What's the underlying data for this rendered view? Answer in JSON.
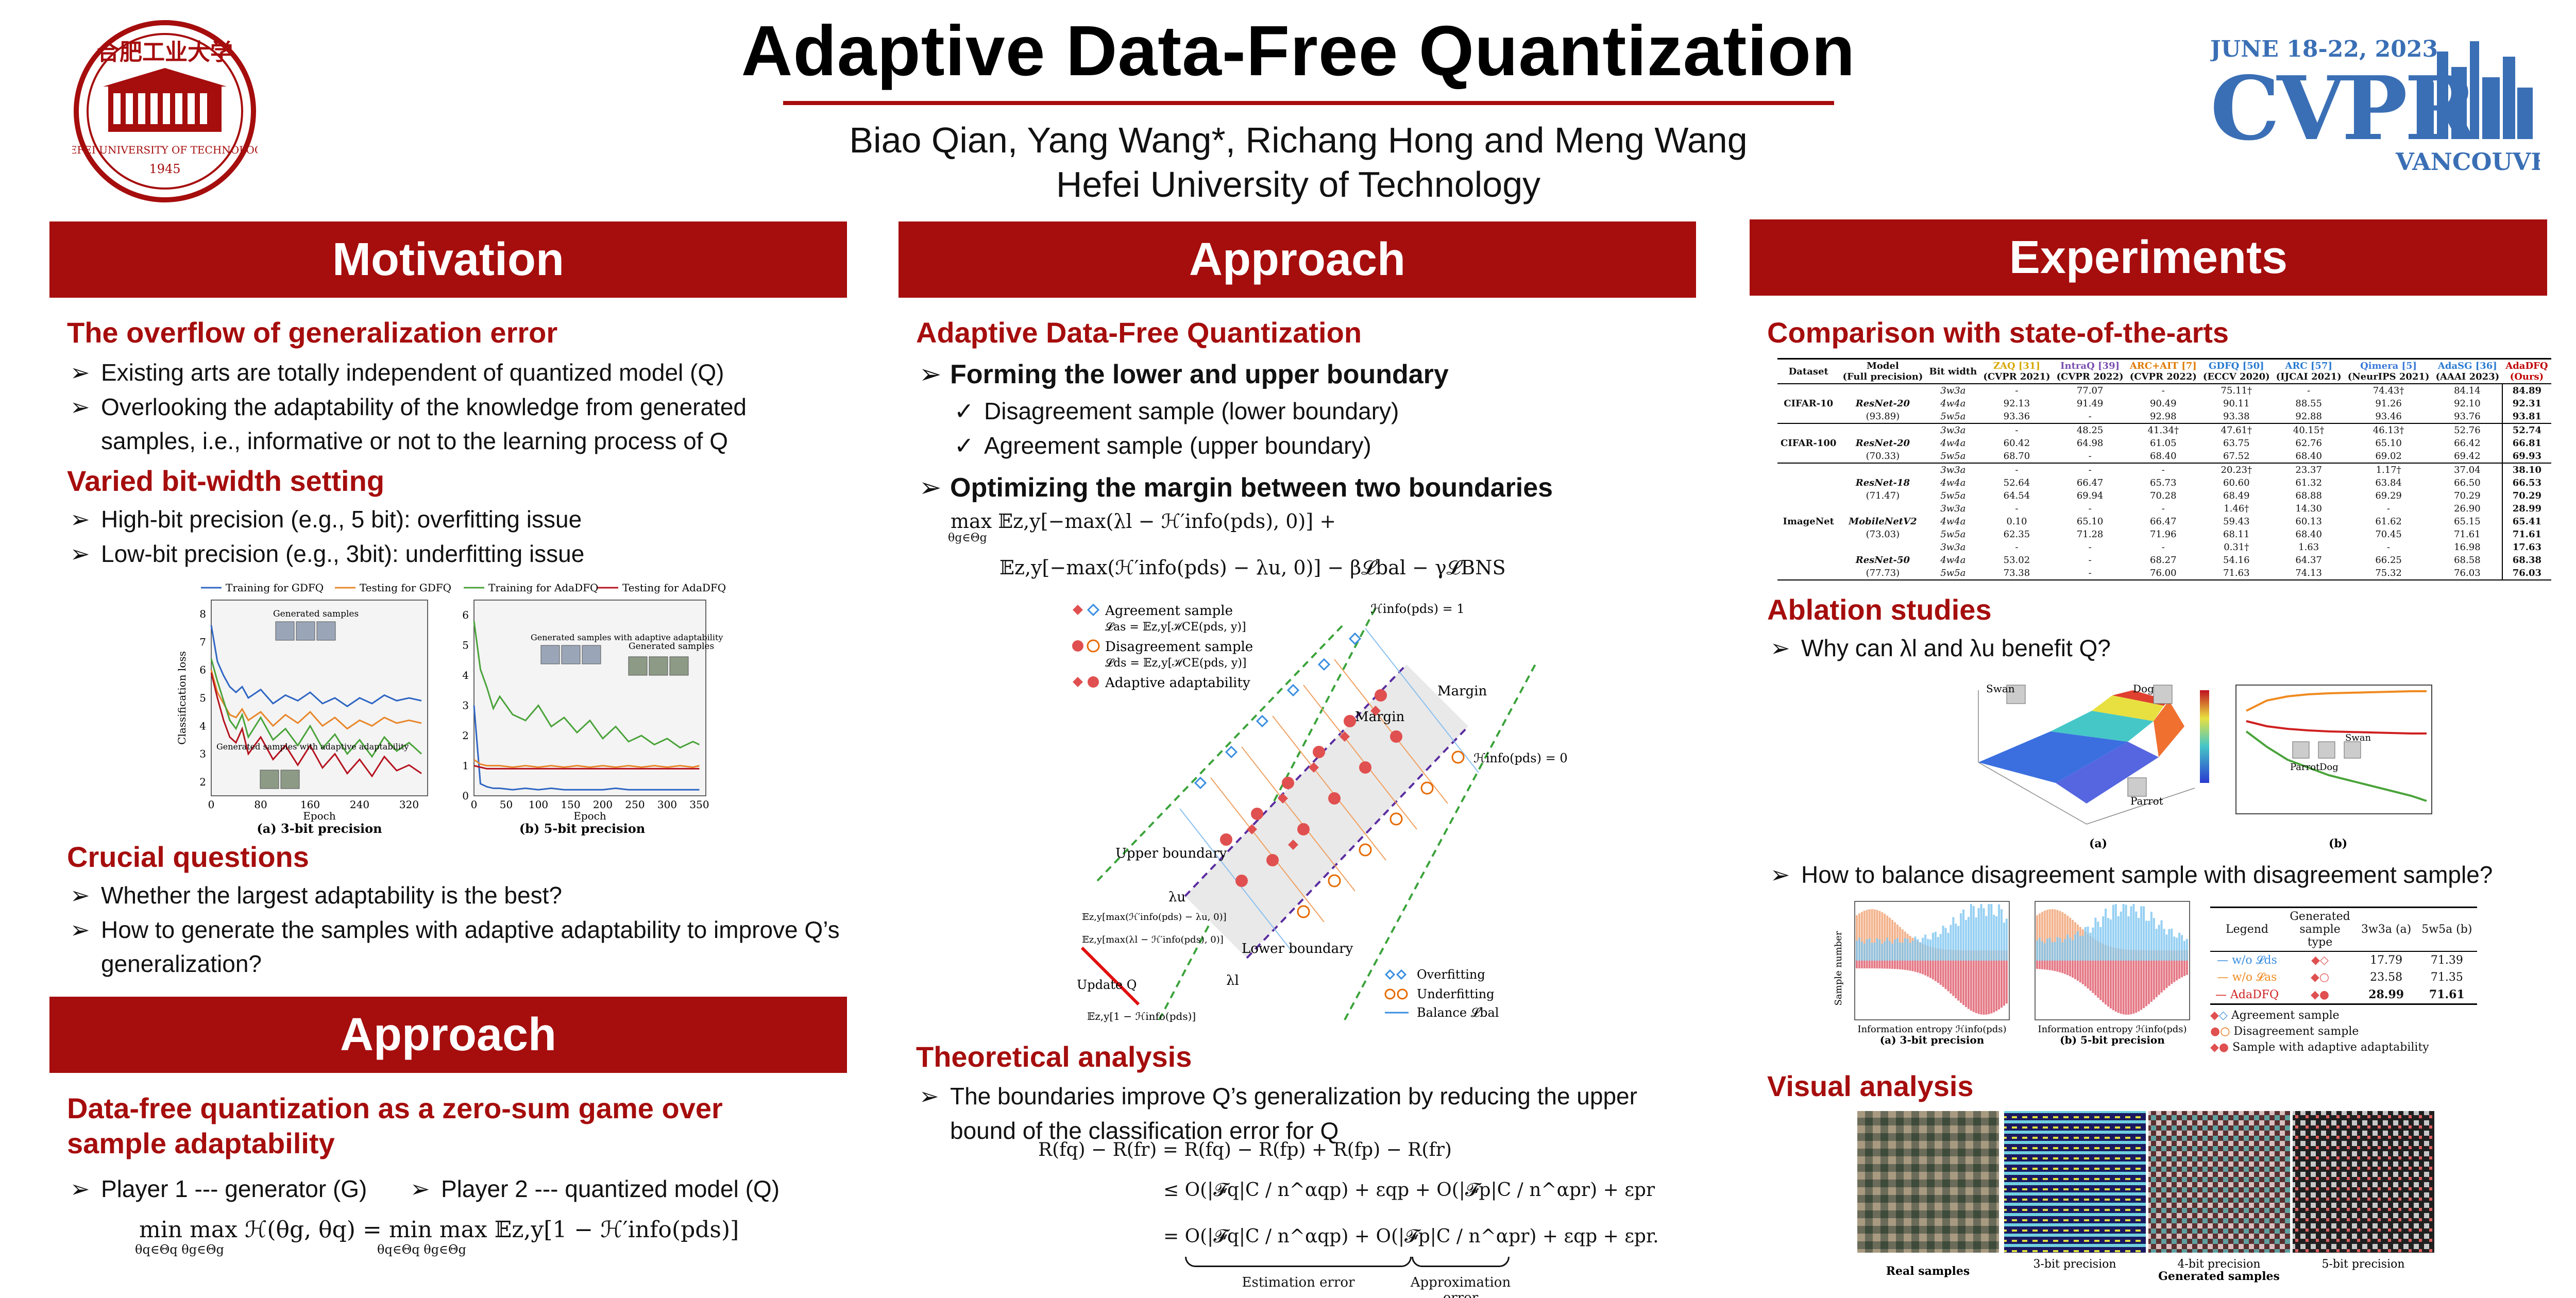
{
  "header": {
    "title": "Adaptive Data-Free Quantization",
    "authors": "Biao Qian, Yang Wang*, Richang Hong and Meng Wang",
    "affiliation": "Hefei University of Technology",
    "logo_text": "HEFEI UNIVERSITY OF TECHNOLOGY",
    "logo_year": "1945",
    "conf_date": "JUNE 18-22, 2023",
    "conf_name": "CVPR",
    "conf_place": "VANCOUVER, CANADA"
  },
  "col1": {
    "band_motivation": "Motivation",
    "overflow_title": "The overflow of generalization error",
    "overflow_b1": "Existing arts are totally independent of quantized model (Q)",
    "overflow_b2": "Overlooking the adaptability of the knowledge from generated samples, i.e., informative or not to the learning process of Q",
    "varied_title": "Varied bit-width setting",
    "varied_b1": "High-bit precision (e.g., 5 bit): overfitting issue",
    "varied_b2": "Low-bit precision (e.g., 3bit): underfitting issue",
    "fig_caption_a": "(a) 3-bit precision",
    "fig_caption_b": "(b) 5-bit precision",
    "fig_ann_a1": "Generated samples",
    "fig_ann_a2": "Generated samples with adaptive adaptability",
    "fig_ann_b1": "Generated samples with adaptive adaptability",
    "fig_ann_b2": "Generated samples",
    "crucial_title": "Crucial questions",
    "crucial_b1": "Whether the largest adaptability is the best?",
    "crucial_b2": "How to generate the samples with adaptive adaptability to improve Q’s generalization?",
    "band_approach": "Approach",
    "zerosum_title": "Data-free quantization as a zero-sum game over sample adaptability",
    "player1": "Player 1 --- generator (G)",
    "player2": "Player 2 --- quantized model (Q)",
    "game_eq": "min max ℋ(θg, θq) = min max 𝔼z,y[1 − ℋ′info(pds)]",
    "game_sub1": "θq∈Θq  θg∈Θg",
    "game_sub2": "θq∈Θq  θg∈Θg"
  },
  "col2": {
    "band": "Approach",
    "adfq_title": "Adaptive Data-Free Quantization",
    "form_b": "Forming the lower and upper boundary",
    "form_c1": "Disagreement sample (lower boundary)",
    "form_c2": "Agreement sample (upper boundary)",
    "opt_b": "Optimizing the margin between two boundaries",
    "opt_eq1": "max 𝔼z,y[−max(λl − ℋ′info(pds), 0)] +",
    "opt_eq1_sub": "θg∈Θg",
    "opt_eq2": "𝔼z,y[−max(ℋ′info(pds) − λu, 0)] − β𝓛bal − γ𝓛BNS",
    "diag_leg1": "Agreement sample",
    "diag_leg1_eq": "𝓛as = 𝔼z,y[ℋCE(pds, y)]",
    "diag_leg2": "Disagreement sample",
    "diag_leg2_eq": "𝓛ds = 𝔼z,y[ℋCE(pds, y)]",
    "diag_leg3": "Adaptive adaptability",
    "diag_top": "ℋinfo(pds) = 1",
    "diag_right": "ℋinfo(pds) = 0",
    "diag_margin1": "Margin",
    "diag_margin2": "Margin",
    "diag_upper": "Upper boundary",
    "diag_lower": "Lower boundary",
    "diag_lu": "λu",
    "diag_ll": "λl",
    "diag_e1": "𝔼z,y[max(ℋ′info(pds) − λu, 0)]",
    "diag_e2": "𝔼z,y[max(λl − ℋ′info(pds), 0)]",
    "diag_updateq": "Update Q",
    "diag_e3": "𝔼z,y[1 − ℋinfo(pds)]",
    "diag_over": "Overfitting",
    "diag_under": "Underfitting",
    "diag_bal": "Balance 𝓛bal",
    "theory_title": "Theoretical analysis",
    "theory_b": "The boundaries improve Q’s generalization by reducing the upper bound of the classification error for Q",
    "th_eq1": "R(fq) − R(fr) = R(fq) − R(fp) + R(fp) − R(fr)",
    "th_eq2": "≤ O(|𝓕q|C / n^αqp) + εqp + O(|𝓕p|C / n^αpr) + εpr",
    "th_eq3": "= O(|𝓕q|C / n^αqp) + O(|𝓕p|C / n^αpr) +  εqp + εpr.",
    "th_est": "Estimation error",
    "th_app": "Approximation error"
  },
  "col3": {
    "band": "Experiments",
    "sota_title": "Comparison with state-of-the-arts",
    "ablation_title": "Ablation studies",
    "abl_b1": "Why can λl and λu benefit Q?",
    "abl_b2": "How to balance disagreement sample with disagreement sample?",
    "abl_fig_a": "(a)",
    "abl_fig_b": "(b)",
    "abl_ann": [
      "Swan",
      "Dog",
      "Parrot",
      "Parrot",
      "Dog",
      "Swan"
    ],
    "hist_cap_a": "(a) 3-bit precision",
    "hist_cap_b": "(b) 5-bit precision",
    "hist_xlabel": "Information entropy ℋinfo(pds)",
    "hist_ylabel": "Sample number",
    "abl_table": {
      "headers": [
        "Legend",
        "Generated sample type",
        "3w3a (a)",
        "5w5a (b)"
      ],
      "rows": [
        {
          "legend": "w/o 𝓛ds",
          "type": "◆◇",
          "a": "17.79",
          "b": "71.39"
        },
        {
          "legend": "w/o 𝓛as",
          "type": "◆○",
          "a": "23.58",
          "b": "71.35"
        },
        {
          "legend": "AdaDFQ",
          "type": "◆●",
          "a": "28.99",
          "b": "71.61"
        }
      ],
      "legend_notes": [
        "Agreement sample",
        "Disagreement sample",
        "Sample with adaptive adaptability"
      ]
    },
    "visual_title": "Visual analysis",
    "vis_caps": [
      "Real samples",
      "3-bit precision",
      "4-bit precision",
      "5-bit precision"
    ],
    "vis_sub": "Generated samples"
  },
  "sota_table": {
    "headers": [
      {
        "name": "Dataset",
        "sub": ""
      },
      {
        "name": "Model",
        "sub": "(Full precision)"
      },
      {
        "name": "Bit width",
        "sub": ""
      },
      {
        "name": "ZAQ [31]",
        "sub": "(CVPR 2021)",
        "color": "#d6a800"
      },
      {
        "name": "IntraQ [39]",
        "sub": "(CVPR 2022)",
        "color": "#7a4fb0"
      },
      {
        "name": "ARC+AIT [7]",
        "sub": "(CVPR 2022)",
        "color": "#e07a00"
      },
      {
        "name": "GDFQ [50]",
        "sub": "(ECCV 2020)",
        "color": "#2a7bd1"
      },
      {
        "name": "ARC [57]",
        "sub": "(IJCAI 2021)",
        "color": "#2a7bd1"
      },
      {
        "name": "Qimera [5]",
        "sub": "(NeurIPS 2021)",
        "color": "#3a78d8"
      },
      {
        "name": "AdaSG [36]",
        "sub": "(AAAI 2023)",
        "color": "#2a7bd1"
      },
      {
        "name": "AdaDFQ",
        "sub": "(Ours)",
        "color": "#c00000"
      }
    ],
    "groups": [
      {
        "dataset": "CIFAR-10",
        "rows": [
          {
            "model": "",
            "bits": "3w3a",
            "v": [
              "-",
              "77.07",
              "-",
              "75.11†",
              "-",
              "74.43†",
              "84.14",
              "84.89"
            ]
          },
          {
            "model": "ResNet-20",
            "bits": "4w4a",
            "v": [
              "92.13",
              "91.49",
              "90.49",
              "90.11",
              "88.55",
              "91.26",
              "92.10",
              "92.31"
            ]
          },
          {
            "model": "(93.89)",
            "bits": "5w5a",
            "v": [
              "93.36",
              "-",
              "92.98",
              "93.38",
              "92.88",
              "93.46",
              "93.76",
              "93.81"
            ]
          }
        ]
      },
      {
        "dataset": "CIFAR-100",
        "rows": [
          {
            "model": "",
            "bits": "3w3a",
            "v": [
              "-",
              "48.25",
              "41.34†",
              "47.61†",
              "40.15†",
              "46.13†",
              "52.76",
              "52.74"
            ]
          },
          {
            "model": "ResNet-20",
            "bits": "4w4a",
            "v": [
              "60.42",
              "64.98",
              "61.05",
              "63.75",
              "62.76",
              "65.10",
              "66.42",
              "66.81"
            ]
          },
          {
            "model": "(70.33)",
            "bits": "5w5a",
            "v": [
              "68.70",
              "-",
              "68.40",
              "67.52",
              "68.40",
              "69.02",
              "69.42",
              "69.93"
            ]
          }
        ]
      },
      {
        "dataset": "ImageNet",
        "rows": [
          {
            "model": "",
            "bits": "3w3a",
            "v": [
              "-",
              "-",
              "-",
              "20.23†",
              "23.37",
              "1.17†",
              "37.04",
              "38.10"
            ]
          },
          {
            "model": "ResNet-18",
            "bits": "4w4a",
            "v": [
              "52.64",
              "66.47",
              "65.73",
              "60.60",
              "61.32",
              "63.84",
              "66.50",
              "66.53"
            ]
          },
          {
            "model": "(71.47)",
            "bits": "5w5a",
            "v": [
              "64.54",
              "69.94",
              "70.28",
              "68.49",
              "68.88",
              "69.29",
              "70.29",
              "70.29"
            ]
          },
          {
            "model": "",
            "bits": "3w3a",
            "v": [
              "-",
              "-",
              "-",
              "1.46†",
              "14.30",
              "-",
              "26.90",
              "28.99"
            ]
          },
          {
            "model": "MobileNetV2",
            "bits": "4w4a",
            "v": [
              "0.10",
              "65.10",
              "66.47",
              "59.43",
              "60.13",
              "61.62",
              "65.15",
              "65.41"
            ]
          },
          {
            "model": "(73.03)",
            "bits": "5w5a",
            "v": [
              "62.35",
              "71.28",
              "71.96",
              "68.11",
              "68.40",
              "70.45",
              "71.61",
              "71.61"
            ]
          },
          {
            "model": "",
            "bits": "3w3a",
            "v": [
              "-",
              "-",
              "-",
              "0.31†",
              "1.63",
              "-",
              "16.98",
              "17.63"
            ]
          },
          {
            "model": "ResNet-50",
            "bits": "4w4a",
            "v": [
              "53.02",
              "-",
              "68.27",
              "54.16",
              "64.37",
              "66.25",
              "68.58",
              "68.38"
            ]
          },
          {
            "model": "(77.73)",
            "bits": "5w5a",
            "v": [
              "73.38",
              "-",
              "76.00",
              "71.63",
              "74.13",
              "75.32",
              "76.03",
              "76.03"
            ]
          }
        ]
      }
    ]
  },
  "chart_data": [
    {
      "type": "line",
      "title": "(a) 3-bit precision",
      "xlabel": "Epoch",
      "ylabel": "Classification loss",
      "xlim": [
        0,
        350
      ],
      "ylim": [
        1.5,
        8.5
      ],
      "xticks": [
        "0",
        "80",
        "160",
        "240",
        "320"
      ],
      "yticks": [
        "2",
        "3",
        "4",
        "5",
        "6",
        "7",
        "8"
      ],
      "x": [
        0,
        10,
        20,
        30,
        40,
        50,
        60,
        80,
        100,
        120,
        140,
        160,
        180,
        200,
        220,
        240,
        260,
        280,
        300,
        320,
        340
      ],
      "series": [
        {
          "name": "Training for GDFQ",
          "color": "#2f66c3",
          "values": [
            7.6,
            6.3,
            5.8,
            5.4,
            5.2,
            5.4,
            5.0,
            5.3,
            4.8,
            5.1,
            4.9,
            5.2,
            4.8,
            5.0,
            4.7,
            5.0,
            4.8,
            5.1,
            4.9,
            5.0,
            4.9
          ]
        },
        {
          "name": "Testing for GDFQ",
          "color": "#e8862a",
          "values": [
            6.0,
            5.2,
            4.8,
            4.4,
            4.3,
            4.6,
            4.2,
            4.5,
            4.0,
            4.4,
            4.1,
            4.5,
            4.0,
            4.3,
            3.9,
            4.2,
            4.0,
            4.3,
            4.1,
            4.2,
            4.1
          ]
        },
        {
          "name": "Training for AdaDFQ",
          "color": "#4aa33a",
          "values": [
            6.4,
            5.6,
            4.9,
            4.2,
            3.9,
            4.4,
            3.6,
            4.3,
            3.5,
            3.9,
            3.3,
            4.0,
            3.2,
            3.7,
            3.0,
            3.5,
            2.9,
            3.6,
            3.1,
            3.4,
            3.0
          ]
        },
        {
          "name": "Testing for AdaDFQ",
          "color": "#b5131f",
          "values": [
            5.9,
            5.0,
            4.2,
            3.6,
            3.4,
            3.9,
            3.0,
            3.6,
            2.8,
            3.3,
            2.6,
            3.3,
            2.5,
            3.0,
            2.3,
            2.8,
            2.2,
            2.9,
            2.4,
            2.6,
            2.3
          ]
        }
      ]
    },
    {
      "type": "line",
      "title": "(b) 5-bit precision",
      "xlabel": "Epoch",
      "ylabel": "",
      "xlim": [
        0,
        360
      ],
      "ylim": [
        0,
        6.5
      ],
      "xticks": [
        "0",
        "50",
        "100",
        "150",
        "200",
        "250",
        "300",
        "350"
      ],
      "yticks": [
        "0",
        "1",
        "2",
        "3",
        "4",
        "5",
        "6"
      ],
      "x": [
        0,
        10,
        20,
        30,
        40,
        60,
        80,
        100,
        120,
        140,
        160,
        180,
        200,
        220,
        240,
        260,
        280,
        300,
        320,
        340,
        350
      ],
      "series": [
        {
          "name": "Training for GDFQ",
          "color": "#2f66c3",
          "values": [
            3.0,
            0.4,
            0.3,
            0.25,
            0.25,
            0.2,
            0.25,
            0.2,
            0.25,
            0.2,
            0.2,
            0.2,
            0.2,
            0.25,
            0.2,
            0.2,
            0.2,
            0.2,
            0.2,
            0.2,
            0.2
          ]
        },
        {
          "name": "Testing for GDFQ",
          "color": "#e8862a",
          "values": [
            1.2,
            1.05,
            1.0,
            1.0,
            1.0,
            0.95,
            1.0,
            0.95,
            1.0,
            0.95,
            1.0,
            0.95,
            1.0,
            0.95,
            1.0,
            0.95,
            1.0,
            0.95,
            1.0,
            0.95,
            1.0
          ]
        },
        {
          "name": "Training for AdaDFQ",
          "color": "#4aa33a",
          "values": [
            5.8,
            4.2,
            3.6,
            2.9,
            3.3,
            2.7,
            2.5,
            3.0,
            2.3,
            2.6,
            2.1,
            2.5,
            1.9,
            2.3,
            1.8,
            2.0,
            1.7,
            1.9,
            1.6,
            1.8,
            1.7
          ]
        },
        {
          "name": "Testing for AdaDFQ",
          "color": "#b5131f",
          "values": [
            1.0,
            0.95,
            0.9,
            0.9,
            0.9,
            0.9,
            0.9,
            0.9,
            0.9,
            0.9,
            0.9,
            0.9,
            0.9,
            0.9,
            0.9,
            0.9,
            0.9,
            0.9,
            0.9,
            0.9,
            0.9
          ]
        }
      ]
    }
  ],
  "colors": {
    "brand_red": "#a60d0d",
    "cvpr_blue": "#3a6fb5",
    "agreement": "#3a8ee0",
    "disagreement": "#e66a00",
    "adaptive": "#e05050"
  }
}
